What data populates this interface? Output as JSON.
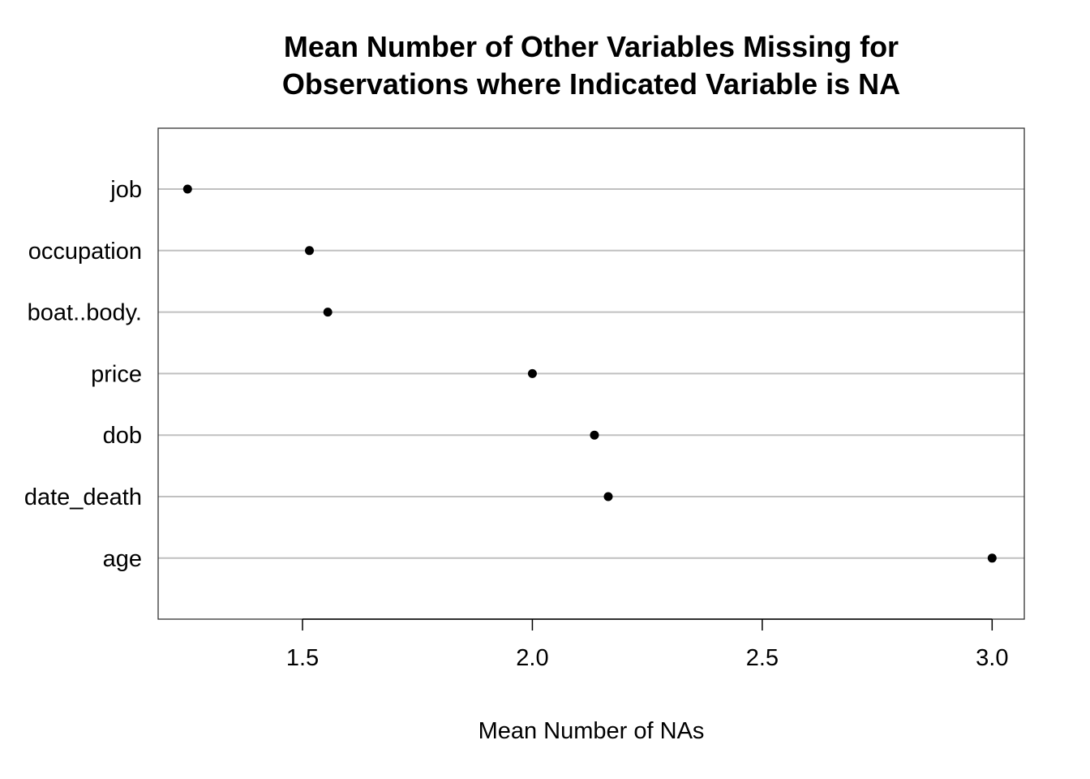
{
  "chart_data": {
    "type": "scatter",
    "title_lines": [
      "Mean Number of Other Variables Missing for",
      "Observations where Indicated Variable is NA"
    ],
    "xlabel": "Mean Number of NAs",
    "ylabel": "",
    "categories": [
      "job",
      "occupation",
      "boat..body.",
      "price",
      "dob",
      "date_death",
      "age"
    ],
    "values": [
      1.25,
      1.515,
      1.555,
      2.0,
      2.135,
      2.165,
      3.0
    ],
    "x_ticks": [
      1.5,
      2.0,
      2.5,
      3.0
    ],
    "x_tick_labels": [
      "1.5",
      "2.0",
      "2.5",
      "3.0"
    ],
    "xlim": [
      1.186,
      3.07
    ],
    "grid": "horizontal lines per category",
    "legend": "none",
    "colors": {
      "point": "#000000",
      "gridline": "#c0c0c0",
      "frame": "#333333"
    }
  }
}
